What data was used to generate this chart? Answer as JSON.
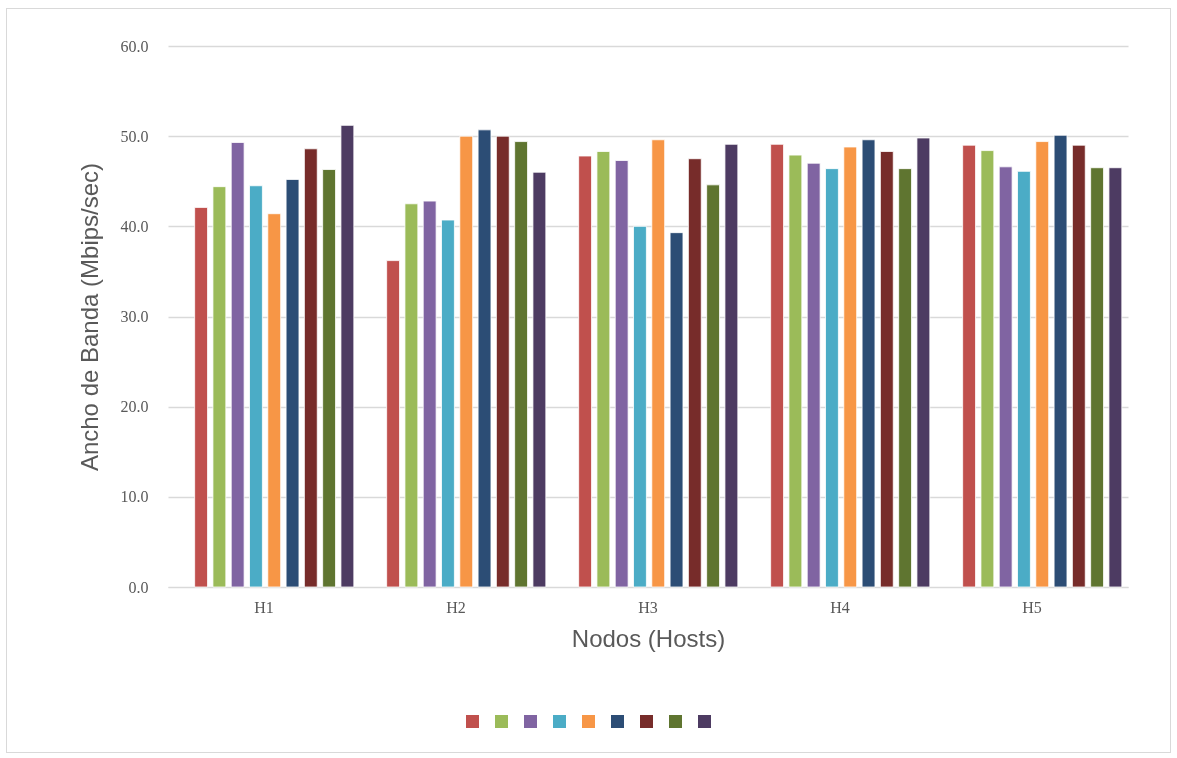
{
  "chart_data": {
    "type": "bar",
    "xlabel": "Nodos (Hosts)",
    "ylabel": "Ancho de Banda (Mbips/sec)",
    "categories": [
      "H1",
      "H2",
      "H3",
      "H4",
      "H5"
    ],
    "ylim": [
      0,
      60
    ],
    "yticks": [
      {
        "value": 0,
        "label": "0.0"
      },
      {
        "value": 10,
        "label": "10.0"
      },
      {
        "value": 20,
        "label": "20.0"
      },
      {
        "value": 30,
        "label": "30.0"
      },
      {
        "value": 40,
        "label": "40.0"
      },
      {
        "value": 50,
        "label": "50.0"
      },
      {
        "value": 60,
        "label": "60.0"
      }
    ],
    "grid": "y",
    "series": [
      {
        "color": "#c0504d",
        "values": [
          42.1,
          36.2,
          47.8,
          49.1,
          49.0
        ]
      },
      {
        "color": "#9bbb59",
        "values": [
          44.4,
          42.5,
          48.3,
          47.9,
          48.4
        ]
      },
      {
        "color": "#8064a2",
        "values": [
          49.3,
          42.8,
          47.3,
          47.0,
          46.6
        ]
      },
      {
        "color": "#4bacc6",
        "values": [
          44.5,
          40.7,
          40.0,
          46.4,
          46.1
        ]
      },
      {
        "color": "#f79646",
        "values": [
          41.4,
          50.0,
          49.6,
          48.8,
          49.4
        ]
      },
      {
        "color": "#2c4d75",
        "values": [
          45.2,
          50.7,
          39.3,
          49.6,
          50.1
        ]
      },
      {
        "color": "#772c2a",
        "values": [
          48.6,
          50.0,
          47.5,
          48.3,
          49.0
        ]
      },
      {
        "color": "#5f7530",
        "values": [
          46.3,
          49.4,
          44.6,
          46.4,
          46.5
        ]
      },
      {
        "color": "#4d3b62",
        "values": [
          51.2,
          46.0,
          49.1,
          49.8,
          46.5
        ]
      }
    ]
  }
}
